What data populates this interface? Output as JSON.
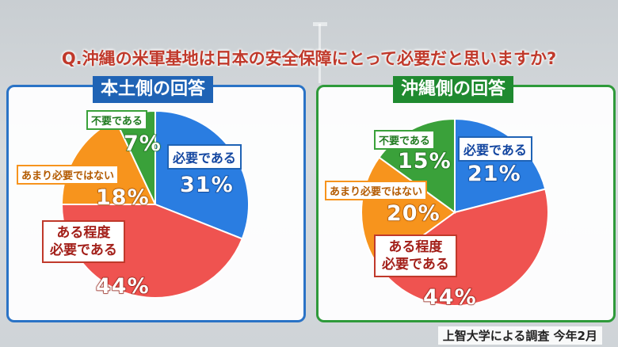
{
  "question": "Q.沖縄の米軍基地は日本の安全保障にとって必要だと思いますか?",
  "source_note": "上智大学による調査 今年2月",
  "colors": {
    "necessary": "#2a7de1",
    "somewhat_necessary": "#ef5350",
    "not_very_necessary": "#f7941d",
    "unnecessary": "#3aa13a"
  },
  "chart_data": [
    {
      "type": "pie",
      "title": "本土側の回答",
      "slices": [
        {
          "label": "必要である",
          "value": 31,
          "display": "31%"
        },
        {
          "label": "ある程度必要である",
          "value": 44,
          "display": "44%"
        },
        {
          "label": "あまり必要ではない",
          "value": 18,
          "display": "18%"
        },
        {
          "label": "不要である",
          "value": 7,
          "display": "7%"
        }
      ]
    },
    {
      "type": "pie",
      "title": "沖縄側の回答",
      "slices": [
        {
          "label": "必要である",
          "value": 21,
          "display": "21%"
        },
        {
          "label": "ある程度必要である",
          "value": 44,
          "display": "44%"
        },
        {
          "label": "あまり必要ではない",
          "value": 20,
          "display": "20%"
        },
        {
          "label": "不要である",
          "value": 15,
          "display": "15%"
        }
      ]
    }
  ],
  "labels": {
    "necessary": "必要である",
    "somewhat_line1": "ある程度",
    "somewhat_line2": "必要である",
    "not_very": "あまり必要ではない",
    "unnecessary": "不要である"
  }
}
